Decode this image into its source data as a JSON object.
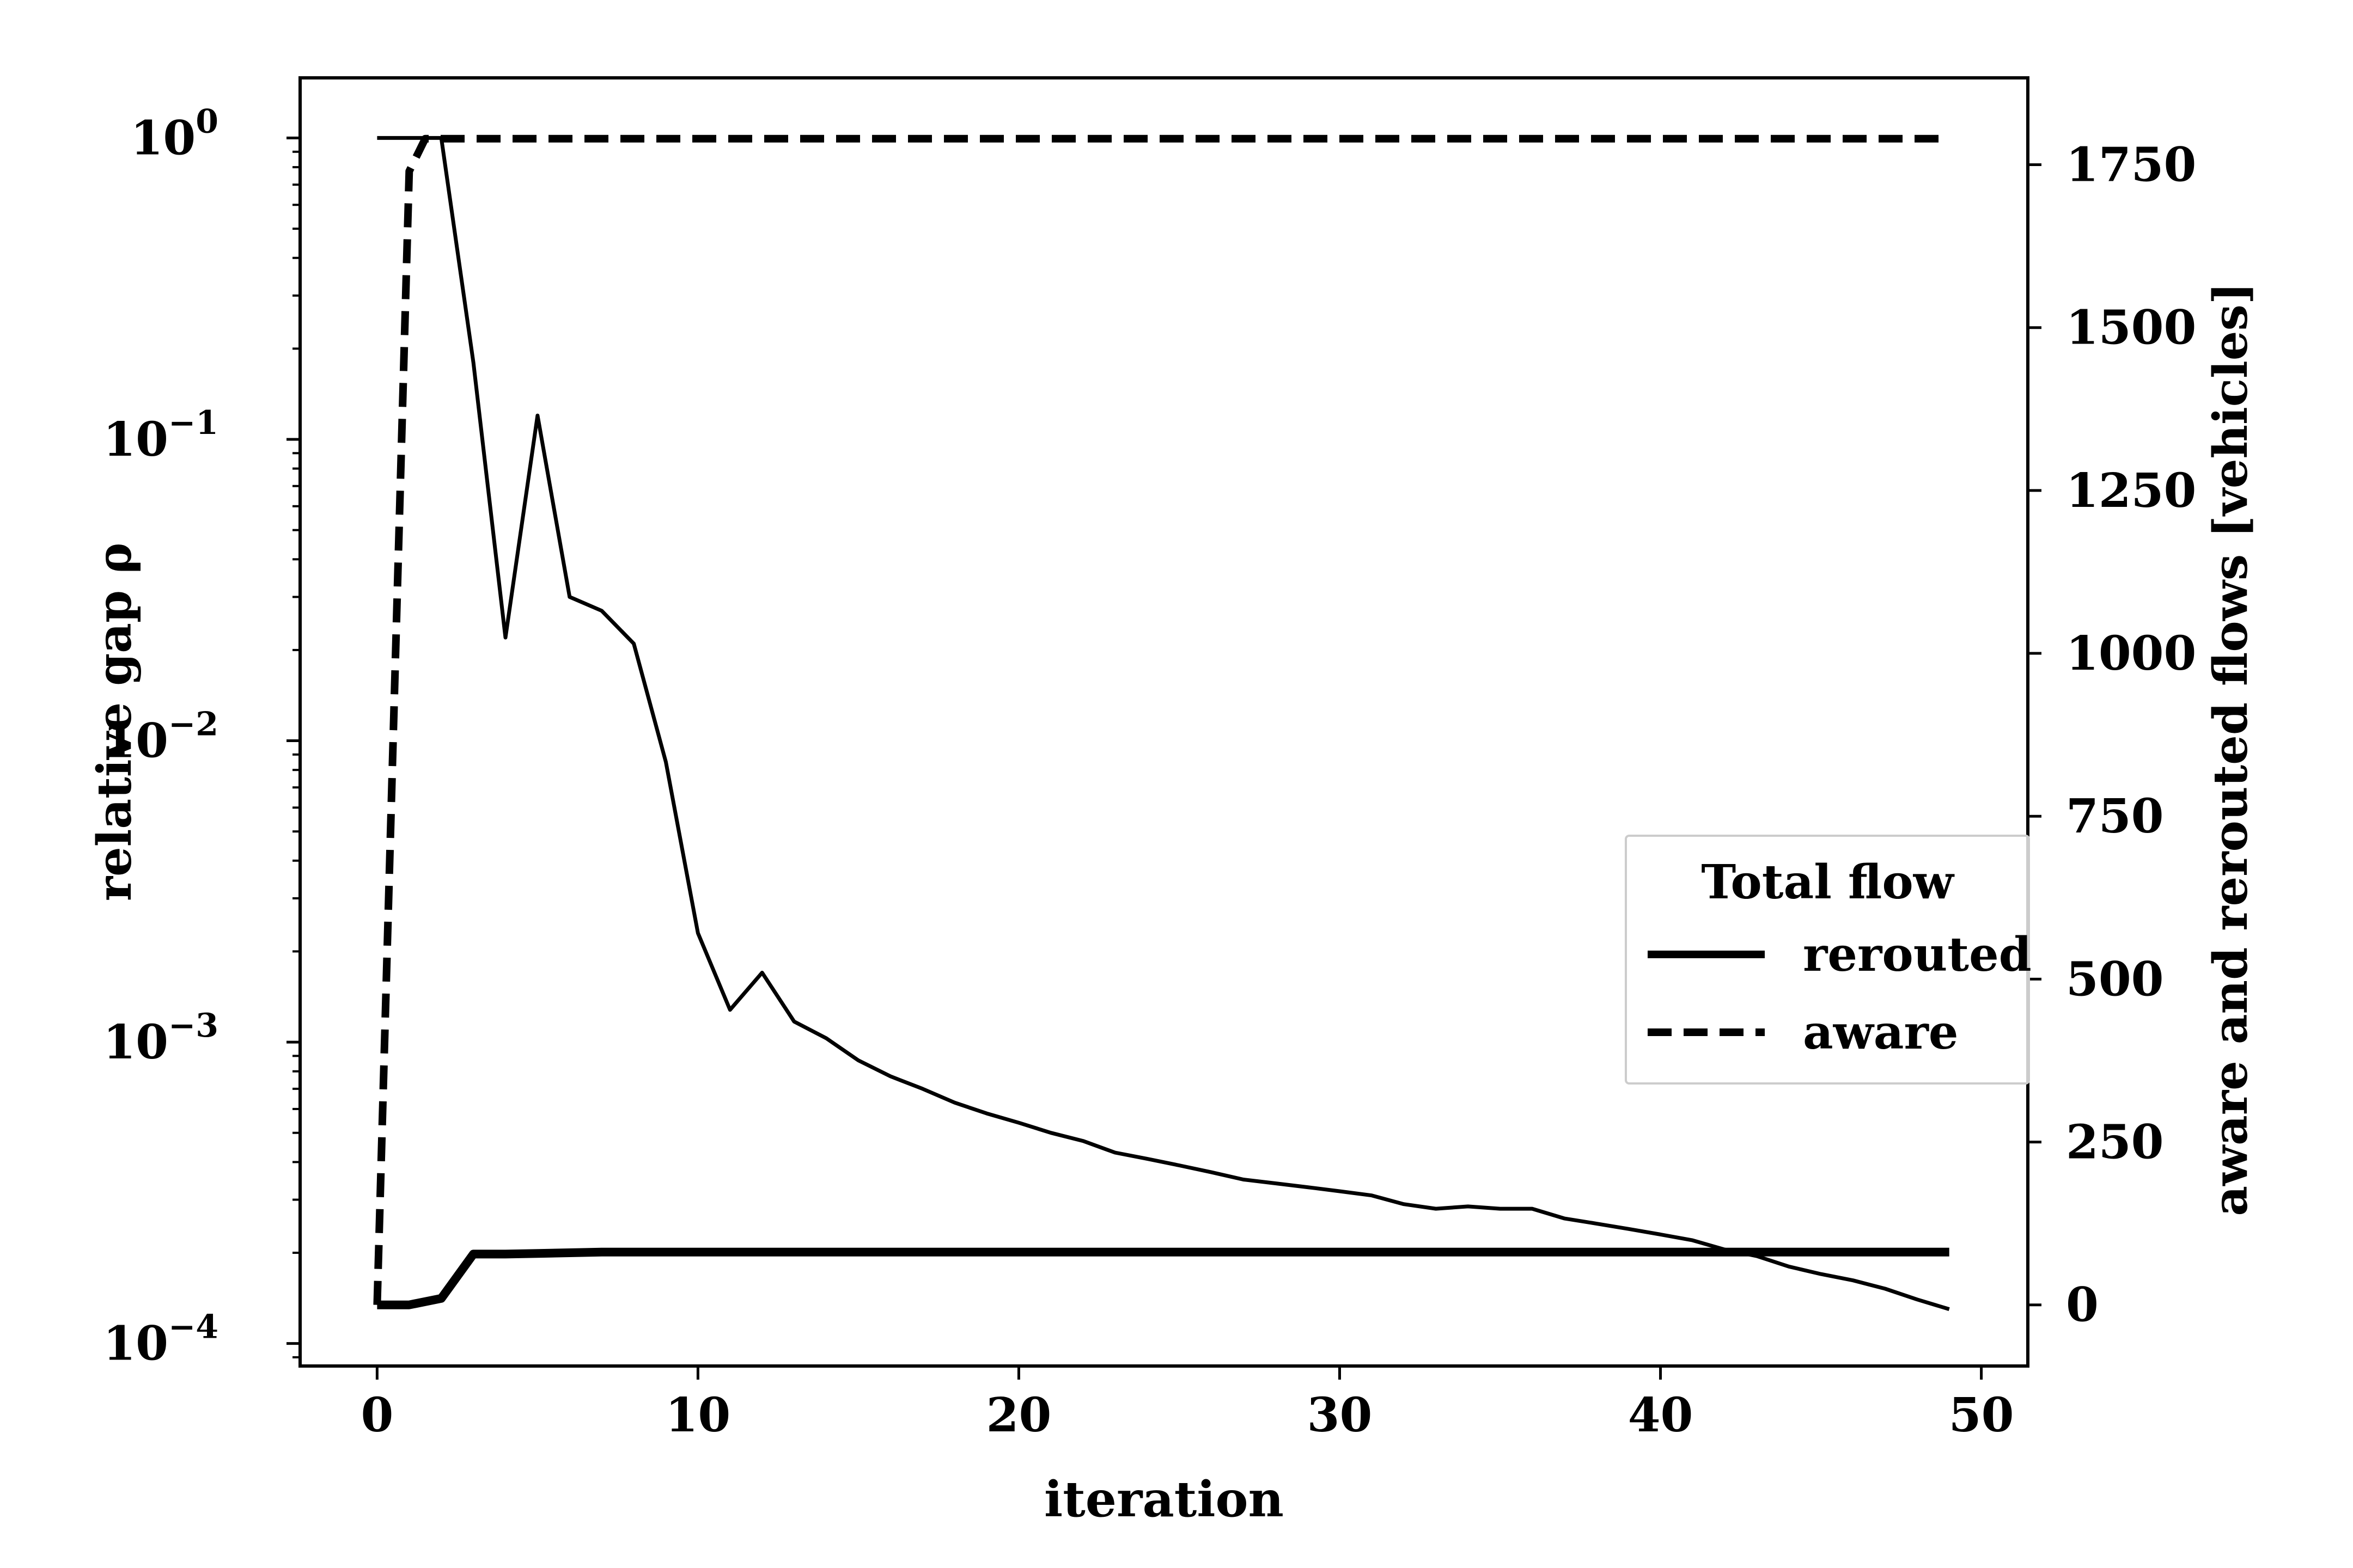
{
  "chart_data": {
    "type": "line",
    "title": "",
    "xlabel": "iteration",
    "xlim": [
      -2.4,
      51.45
    ],
    "xticks": [
      0,
      10,
      20,
      30,
      40,
      50
    ],
    "left_axis": {
      "label": "relative gap ρ",
      "scale": "log",
      "ylim": [
        8.42e-05,
        1.583
      ],
      "ticks": [
        {
          "value": 1,
          "mantissa": "10",
          "exp": "0"
        },
        {
          "value": 0.1,
          "mantissa": "10",
          "exp": "−1"
        },
        {
          "value": 0.01,
          "mantissa": "10",
          "exp": "−2"
        },
        {
          "value": 0.001,
          "mantissa": "10",
          "exp": "−3"
        },
        {
          "value": 0.0001,
          "mantissa": "10",
          "exp": "−4"
        }
      ]
    },
    "right_axis": {
      "label": "aware and reroute­d flows [vehicles]",
      "scale": "linear",
      "ylim": [
        -93.8,
        1883.3
      ],
      "ticks": [
        0,
        250,
        500,
        750,
        1000,
        1250,
        1500,
        1750
      ]
    },
    "series": [
      {
        "name": "relative gap",
        "axis": "left",
        "style": "thin",
        "x": [
          0,
          1,
          2,
          3,
          4,
          5,
          6,
          7,
          8,
          9,
          10,
          11,
          12,
          13,
          14,
          15,
          16,
          17,
          18,
          19,
          20,
          21,
          22,
          23,
          24,
          25,
          26,
          27,
          28,
          29,
          30,
          31,
          32,
          33,
          34,
          35,
          36,
          37,
          38,
          39,
          40,
          41,
          42,
          43,
          44,
          45,
          46,
          47,
          48,
          49
        ],
        "values": [
          1,
          1,
          1,
          0.18,
          0.022,
          0.12,
          0.03,
          0.027,
          0.021,
          0.0085,
          0.0023,
          0.00128,
          0.0017,
          0.00117,
          0.00103,
          0.00087,
          0.00077,
          0.0007,
          0.00063,
          0.00058,
          0.00054,
          0.0005,
          0.00047,
          0.00043,
          0.00041,
          0.00039,
          0.00037,
          0.00035,
          0.00034,
          0.00033,
          0.00032,
          0.00031,
          0.00029,
          0.00028,
          0.000285,
          0.00028,
          0.00028,
          0.00026,
          0.00025,
          0.00024,
          0.00023,
          0.00022,
          0.000205,
          0.000195,
          0.00018,
          0.00017,
          0.000162,
          0.000152,
          0.00014,
          0.00013
        ]
      },
      {
        "name": "rerouted",
        "axis": "right",
        "style": "thick",
        "x": [
          0,
          1,
          2,
          3,
          4,
          5,
          6,
          7,
          8,
          9,
          10,
          11,
          12,
          13,
          14,
          15,
          16,
          17,
          18,
          19,
          20,
          21,
          22,
          23,
          24,
          25,
          26,
          27,
          28,
          29,
          30,
          31,
          32,
          33,
          34,
          35,
          36,
          37,
          38,
          39,
          40,
          41,
          42,
          43,
          44,
          45,
          46,
          47,
          48,
          49
        ],
        "values": [
          0,
          0,
          10,
          78,
          78,
          79,
          80,
          81,
          81,
          81,
          81,
          81,
          81,
          81,
          81,
          81,
          81,
          81,
          81,
          81,
          81,
          81,
          81,
          81,
          81,
          81,
          81,
          81,
          81,
          81,
          81,
          81,
          81,
          81,
          81,
          81,
          81,
          81,
          81,
          81,
          81,
          81,
          81,
          81,
          81,
          81,
          81,
          81,
          81,
          81
        ]
      },
      {
        "name": "aware",
        "axis": "right",
        "style": "dashed",
        "x": [
          0,
          1,
          1.5,
          2,
          49
        ],
        "values": [
          0,
          1740,
          1790,
          1790,
          1790
        ]
      }
    ],
    "legend": {
      "title": "Total flow",
      "placement": "center-right",
      "entries": [
        {
          "label": "rerouted",
          "style": "solid"
        },
        {
          "label": "aware",
          "style": "dashed"
        }
      ]
    }
  }
}
